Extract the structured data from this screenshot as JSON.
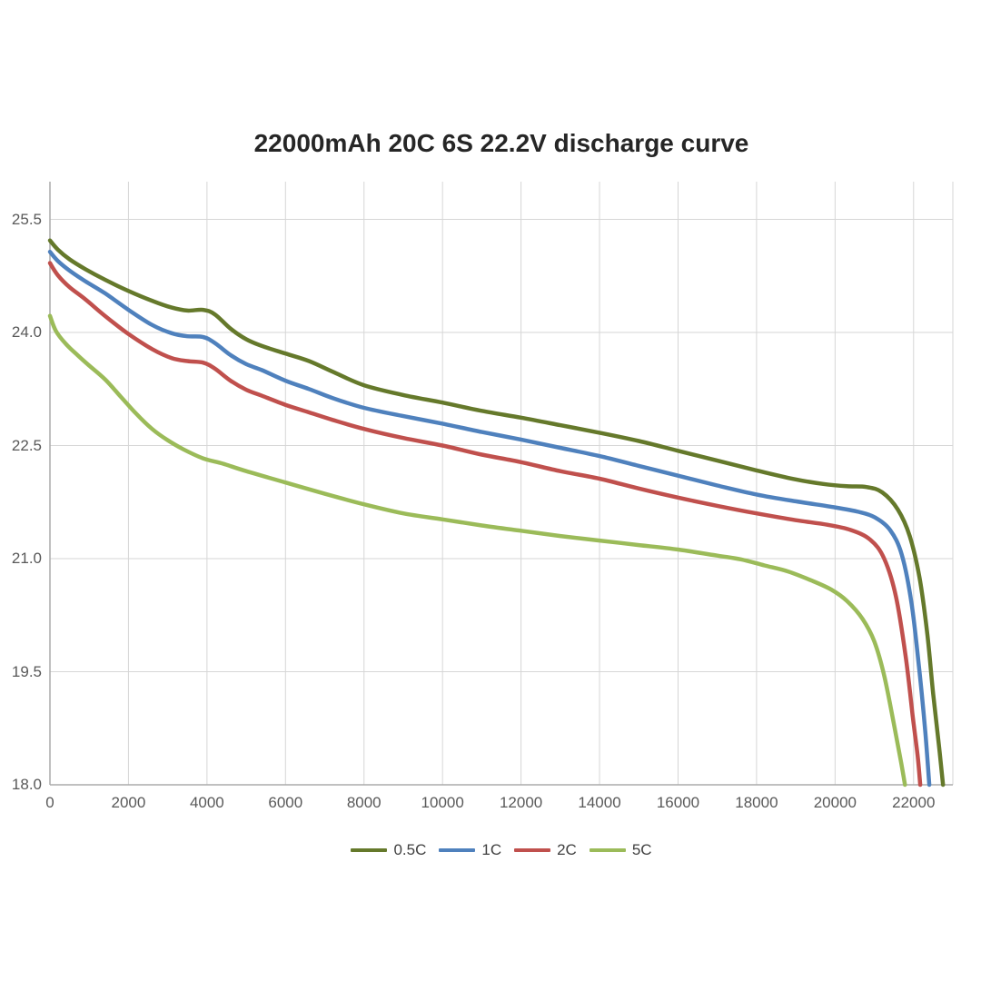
{
  "chart_data": {
    "type": "line",
    "title": "22000mAh 20C 6S 22.2V discharge curve",
    "xlabel": "",
    "ylabel": "",
    "xlim": [
      0,
      23000
    ],
    "ylim": [
      18.0,
      26.0
    ],
    "grid": true,
    "legend_position": "bottom",
    "x_ticks": [
      {
        "v": 0,
        "label": "0"
      },
      {
        "v": 2000,
        "label": "2000"
      },
      {
        "v": 4000,
        "label": "4000"
      },
      {
        "v": 6000,
        "label": "6000"
      },
      {
        "v": 8000,
        "label": "8000"
      },
      {
        "v": 10000,
        "label": "10000"
      },
      {
        "v": 12000,
        "label": "12000"
      },
      {
        "v": 14000,
        "label": "14000"
      },
      {
        "v": 16000,
        "label": "16000"
      },
      {
        "v": 18000,
        "label": "18000"
      },
      {
        "v": 20000,
        "label": "20000"
      },
      {
        "v": 22000,
        "label": "22000"
      }
    ],
    "y_ticks": [
      {
        "v": 25.5,
        "label": "25.5"
      },
      {
        "v": 24.0,
        "label": "24.0"
      },
      {
        "v": 22.5,
        "label": "22.5"
      },
      {
        "v": 21.0,
        "label": "21.0"
      },
      {
        "v": 19.5,
        "label": "19.5"
      },
      {
        "v": 18.0,
        "label": "18.0"
      }
    ],
    "series": [
      {
        "name": "0.5C",
        "color": "#65792b",
        "points": [
          [
            0,
            25.22
          ],
          [
            200,
            25.1
          ],
          [
            500,
            24.97
          ],
          [
            900,
            24.84
          ],
          [
            1400,
            24.7
          ],
          [
            2000,
            24.55
          ],
          [
            2600,
            24.42
          ],
          [
            3100,
            24.33
          ],
          [
            3500,
            24.29
          ],
          [
            3900,
            24.3
          ],
          [
            4200,
            24.24
          ],
          [
            4600,
            24.05
          ],
          [
            5000,
            23.91
          ],
          [
            5400,
            23.82
          ],
          [
            6000,
            23.72
          ],
          [
            6600,
            23.62
          ],
          [
            7200,
            23.48
          ],
          [
            8000,
            23.3
          ],
          [
            9000,
            23.17
          ],
          [
            10000,
            23.07
          ],
          [
            11000,
            22.96
          ],
          [
            12000,
            22.87
          ],
          [
            13000,
            22.77
          ],
          [
            14000,
            22.67
          ],
          [
            15000,
            22.56
          ],
          [
            16000,
            22.43
          ],
          [
            17000,
            22.3
          ],
          [
            18000,
            22.17
          ],
          [
            19000,
            22.05
          ],
          [
            19700,
            21.99
          ],
          [
            20300,
            21.96
          ],
          [
            20800,
            21.95
          ],
          [
            21200,
            21.88
          ],
          [
            21600,
            21.65
          ],
          [
            21900,
            21.3
          ],
          [
            22150,
            20.75
          ],
          [
            22350,
            20.0
          ],
          [
            22500,
            19.2
          ],
          [
            22650,
            18.5
          ],
          [
            22750,
            18.0
          ]
        ]
      },
      {
        "name": "1C",
        "color": "#4f81bd",
        "points": [
          [
            0,
            25.07
          ],
          [
            200,
            24.95
          ],
          [
            500,
            24.82
          ],
          [
            900,
            24.68
          ],
          [
            1400,
            24.52
          ],
          [
            2000,
            24.3
          ],
          [
            2600,
            24.1
          ],
          [
            3100,
            23.99
          ],
          [
            3500,
            23.95
          ],
          [
            3900,
            23.94
          ],
          [
            4200,
            23.86
          ],
          [
            4600,
            23.7
          ],
          [
            5000,
            23.58
          ],
          [
            5400,
            23.5
          ],
          [
            6000,
            23.36
          ],
          [
            6600,
            23.25
          ],
          [
            7200,
            23.13
          ],
          [
            8000,
            23.0
          ],
          [
            9000,
            22.89
          ],
          [
            10000,
            22.79
          ],
          [
            11000,
            22.68
          ],
          [
            12000,
            22.58
          ],
          [
            13000,
            22.47
          ],
          [
            14000,
            22.36
          ],
          [
            15000,
            22.23
          ],
          [
            16000,
            22.1
          ],
          [
            17000,
            21.97
          ],
          [
            18000,
            21.85
          ],
          [
            19000,
            21.76
          ],
          [
            20000,
            21.68
          ],
          [
            20600,
            21.62
          ],
          [
            21000,
            21.55
          ],
          [
            21400,
            21.38
          ],
          [
            21700,
            21.05
          ],
          [
            21950,
            20.4
          ],
          [
            22150,
            19.5
          ],
          [
            22300,
            18.7
          ],
          [
            22400,
            18.0
          ]
        ]
      },
      {
        "name": "2C",
        "color": "#c0504d",
        "points": [
          [
            0,
            24.92
          ],
          [
            200,
            24.76
          ],
          [
            500,
            24.6
          ],
          [
            900,
            24.44
          ],
          [
            1400,
            24.22
          ],
          [
            2000,
            23.98
          ],
          [
            2600,
            23.78
          ],
          [
            3100,
            23.66
          ],
          [
            3500,
            23.62
          ],
          [
            3900,
            23.6
          ],
          [
            4200,
            23.52
          ],
          [
            4600,
            23.36
          ],
          [
            5000,
            23.24
          ],
          [
            5400,
            23.16
          ],
          [
            6000,
            23.04
          ],
          [
            6600,
            22.94
          ],
          [
            7200,
            22.84
          ],
          [
            8000,
            22.72
          ],
          [
            9000,
            22.6
          ],
          [
            10000,
            22.5
          ],
          [
            11000,
            22.38
          ],
          [
            12000,
            22.28
          ],
          [
            13000,
            22.16
          ],
          [
            14000,
            22.06
          ],
          [
            15000,
            21.93
          ],
          [
            16000,
            21.81
          ],
          [
            17000,
            21.7
          ],
          [
            18000,
            21.6
          ],
          [
            19000,
            21.51
          ],
          [
            19800,
            21.45
          ],
          [
            20400,
            21.38
          ],
          [
            20900,
            21.25
          ],
          [
            21250,
            21.0
          ],
          [
            21550,
            20.5
          ],
          [
            21800,
            19.7
          ],
          [
            21980,
            18.9
          ],
          [
            22100,
            18.4
          ],
          [
            22170,
            18.0
          ]
        ]
      },
      {
        "name": "5C",
        "color": "#9bbb59",
        "points": [
          [
            0,
            24.22
          ],
          [
            150,
            24.02
          ],
          [
            400,
            23.85
          ],
          [
            700,
            23.7
          ],
          [
            1000,
            23.56
          ],
          [
            1400,
            23.38
          ],
          [
            1800,
            23.15
          ],
          [
            2200,
            22.92
          ],
          [
            2600,
            22.72
          ],
          [
            3000,
            22.57
          ],
          [
            3400,
            22.45
          ],
          [
            3900,
            22.33
          ],
          [
            4400,
            22.26
          ],
          [
            5000,
            22.16
          ],
          [
            6000,
            22.01
          ],
          [
            7000,
            21.86
          ],
          [
            8000,
            21.72
          ],
          [
            9000,
            21.6
          ],
          [
            10000,
            21.52
          ],
          [
            11000,
            21.44
          ],
          [
            12000,
            21.37
          ],
          [
            13000,
            21.3
          ],
          [
            14000,
            21.24
          ],
          [
            15000,
            21.18
          ],
          [
            16000,
            21.12
          ],
          [
            17000,
            21.04
          ],
          [
            17600,
            20.99
          ],
          [
            18200,
            20.91
          ],
          [
            18800,
            20.83
          ],
          [
            19400,
            20.71
          ],
          [
            19900,
            20.59
          ],
          [
            20300,
            20.44
          ],
          [
            20700,
            20.2
          ],
          [
            21000,
            19.9
          ],
          [
            21250,
            19.45
          ],
          [
            21500,
            18.8
          ],
          [
            21680,
            18.3
          ],
          [
            21780,
            18.0
          ]
        ]
      }
    ]
  }
}
